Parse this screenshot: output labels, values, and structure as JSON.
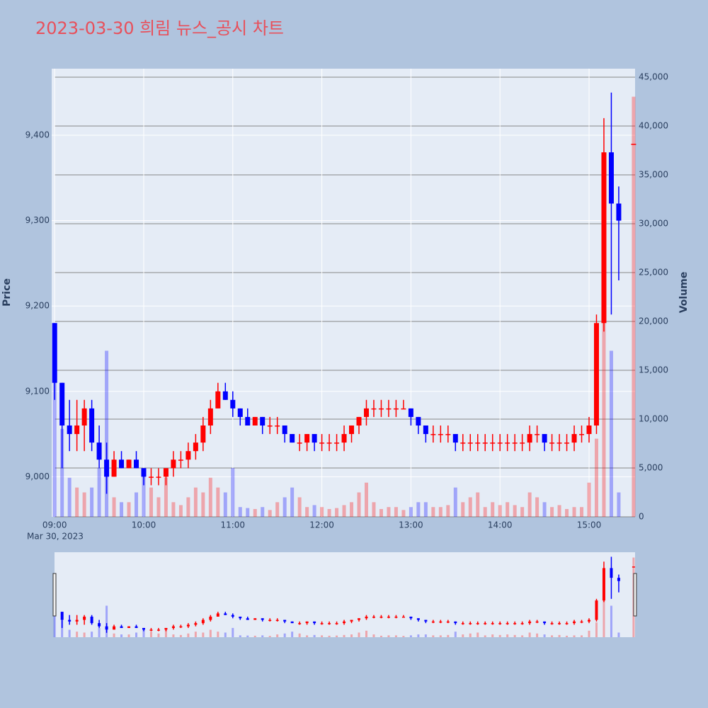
{
  "chart_data": {
    "type": "candlestick",
    "title": "2023-03-30 희림 뉴스_공시 차트",
    "title_color": "#e8505b",
    "x": [
      "09:00",
      "09:05",
      "09:10",
      "09:15",
      "09:20",
      "09:25",
      "09:30",
      "09:35",
      "09:40",
      "09:45",
      "09:50",
      "09:55",
      "10:00",
      "10:05",
      "10:10",
      "10:15",
      "10:20",
      "10:25",
      "10:30",
      "10:35",
      "10:40",
      "10:45",
      "10:50",
      "10:55",
      "11:00",
      "11:05",
      "11:10",
      "11:15",
      "11:20",
      "11:25",
      "11:30",
      "11:35",
      "11:40",
      "11:45",
      "11:50",
      "11:55",
      "12:00",
      "12:05",
      "12:10",
      "12:15",
      "12:20",
      "12:25",
      "12:30",
      "12:35",
      "12:40",
      "12:45",
      "12:50",
      "12:55",
      "13:00",
      "13:05",
      "13:10",
      "13:15",
      "13:20",
      "13:25",
      "13:30",
      "13:35",
      "13:40",
      "13:45",
      "13:50",
      "13:55",
      "14:00",
      "14:05",
      "14:10",
      "14:15",
      "14:20",
      "14:25",
      "14:30",
      "14:35",
      "14:40",
      "14:45",
      "14:50",
      "14:55",
      "15:00",
      "15:05",
      "15:10",
      "15:15",
      "15:20",
      "15:30"
    ],
    "open": [
      9180,
      9110,
      9060,
      9050,
      9060,
      9080,
      9040,
      9020,
      9000,
      9020,
      9010,
      9020,
      9010,
      9000,
      9000,
      9000,
      9010,
      9020,
      9020,
      9030,
      9040,
      9060,
      9080,
      9100,
      9090,
      9080,
      9070,
      9060,
      9070,
      9060,
      9060,
      9060,
      9050,
      9040,
      9040,
      9050,
      9040,
      9040,
      9040,
      9040,
      9050,
      9060,
      9070,
      9080,
      9080,
      9080,
      9080,
      9080,
      9080,
      9070,
      9060,
      9050,
      9050,
      9050,
      9050,
      9040,
      9040,
      9040,
      9040,
      9040,
      9040,
      9040,
      9040,
      9040,
      9040,
      9050,
      9050,
      9040,
      9040,
      9040,
      9040,
      9050,
      9050,
      9060,
      9180,
      9380,
      9320,
      9390
    ],
    "high": [
      9180,
      9110,
      9090,
      9090,
      9090,
      9090,
      9060,
      9040,
      9030,
      9030,
      9020,
      9030,
      9010,
      9010,
      9010,
      9010,
      9030,
      9030,
      9040,
      9050,
      9070,
      9090,
      9110,
      9110,
      9100,
      9080,
      9080,
      9070,
      9070,
      9070,
      9070,
      9060,
      9050,
      9050,
      9050,
      9050,
      9050,
      9050,
      9050,
      9060,
      9060,
      9070,
      9090,
      9090,
      9090,
      9090,
      9090,
      9090,
      9080,
      9070,
      9060,
      9060,
      9060,
      9060,
      9050,
      9050,
      9050,
      9050,
      9050,
      9050,
      9050,
      9050,
      9050,
      9050,
      9060,
      9060,
      9050,
      9050,
      9050,
      9050,
      9060,
      9060,
      9070,
      9190,
      9420,
      9450,
      9340,
      9390
    ],
    "low": [
      9090,
      9010,
      9030,
      9030,
      9030,
      9030,
      9010,
      8980,
      9000,
      9010,
      9010,
      9010,
      8990,
      8990,
      8990,
      8990,
      9000,
      9010,
      9010,
      9020,
      9030,
      9050,
      9080,
      9090,
      9070,
      9060,
      9060,
      9060,
      9050,
      9050,
      9050,
      9040,
      9040,
      9030,
      9030,
      9030,
      9030,
      9030,
      9030,
      9030,
      9040,
      9050,
      9060,
      9070,
      9070,
      9070,
      9070,
      9080,
      9060,
      9050,
      9040,
      9040,
      9040,
      9040,
      9030,
      9030,
      9030,
      9030,
      9030,
      9030,
      9030,
      9030,
      9030,
      9030,
      9030,
      9040,
      9030,
      9030,
      9030,
      9030,
      9030,
      9040,
      9040,
      9050,
      9170,
      9190,
      9230,
      9390
    ],
    "close": [
      9110,
      9060,
      9050,
      9060,
      9080,
      9040,
      9020,
      9000,
      9020,
      9010,
      9020,
      9010,
      9000,
      9000,
      9000,
      9010,
      9020,
      9020,
      9030,
      9040,
      9060,
      9080,
      9100,
      9090,
      9080,
      9070,
      9060,
      9070,
      9060,
      9060,
      9060,
      9050,
      9040,
      9040,
      9050,
      9040,
      9040,
      9040,
      9040,
      9050,
      9060,
      9070,
      9080,
      9080,
      9080,
      9080,
      9080,
      9080,
      9070,
      9060,
      9050,
      9050,
      9050,
      9050,
      9040,
      9040,
      9040,
      9040,
      9040,
      9040,
      9040,
      9040,
      9040,
      9040,
      9050,
      9050,
      9040,
      9040,
      9040,
      9040,
      9050,
      9050,
      9060,
      9180,
      9380,
      9320,
      9300,
      9390
    ],
    "volume": [
      14000,
      9000,
      4000,
      3000,
      2500,
      3000,
      5000,
      17000,
      2000,
      1500,
      1500,
      2500,
      5000,
      3000,
      2000,
      4000,
      1500,
      1200,
      2000,
      3000,
      2500,
      4000,
      3000,
      2500,
      5000,
      1000,
      900,
      800,
      1000,
      700,
      1500,
      2000,
      3000,
      2000,
      1000,
      1200,
      1000,
      800,
      900,
      1200,
      1500,
      2500,
      3500,
      1500,
      800,
      1000,
      1000,
      700,
      1000,
      1500,
      1500,
      1000,
      1000,
      1200,
      3000,
      1500,
      2000,
      2500,
      1000,
      1500,
      1200,
      1500,
      1200,
      1000,
      2500,
      2000,
      1500,
      1000,
      1200,
      800,
      1000,
      1000,
      3500,
      8000,
      25000,
      17000,
      2500,
      43000
    ],
    "up_color": "#ff0000",
    "down_color": "#0000ff",
    "up_volume_color": "rgba(255,0,0,0.3)",
    "down_volume_color": "rgba(0,0,255,0.3)",
    "xlim": [
      "08:58",
      "15:31"
    ],
    "xticks": [
      "09:00",
      "10:00",
      "11:00",
      "12:00",
      "13:00",
      "14:00",
      "15:00"
    ],
    "date_label": "Mar 30, 2023",
    "ylabel": "Price",
    "ylim": [
      8953,
      9478
    ],
    "yticks": [
      {
        "value": 9000,
        "label": "9,000"
      },
      {
        "value": 9100,
        "label": "9,100"
      },
      {
        "value": 9200,
        "label": "9,200"
      },
      {
        "value": 9300,
        "label": "9,300"
      },
      {
        "value": 9400,
        "label": "9,400"
      }
    ],
    "y2label": "Volume",
    "y2lim": [
      0,
      45870
    ],
    "y2ticks": [
      0,
      {
        "value": 5000,
        "label": "5,000"
      },
      {
        "value": 10000,
        "label": "10,000"
      },
      {
        "value": 15000,
        "label": "15,000"
      },
      {
        "value": 20000,
        "label": "20,000"
      },
      {
        "value": 25000,
        "label": "25,000"
      },
      {
        "value": 30000,
        "label": "30,000"
      },
      {
        "value": 35000,
        "label": "35,000"
      },
      {
        "value": 40000,
        "label": "40,000"
      },
      {
        "value": 45000,
        "label": "45,000"
      }
    ],
    "grid": true,
    "range_slider": true
  }
}
